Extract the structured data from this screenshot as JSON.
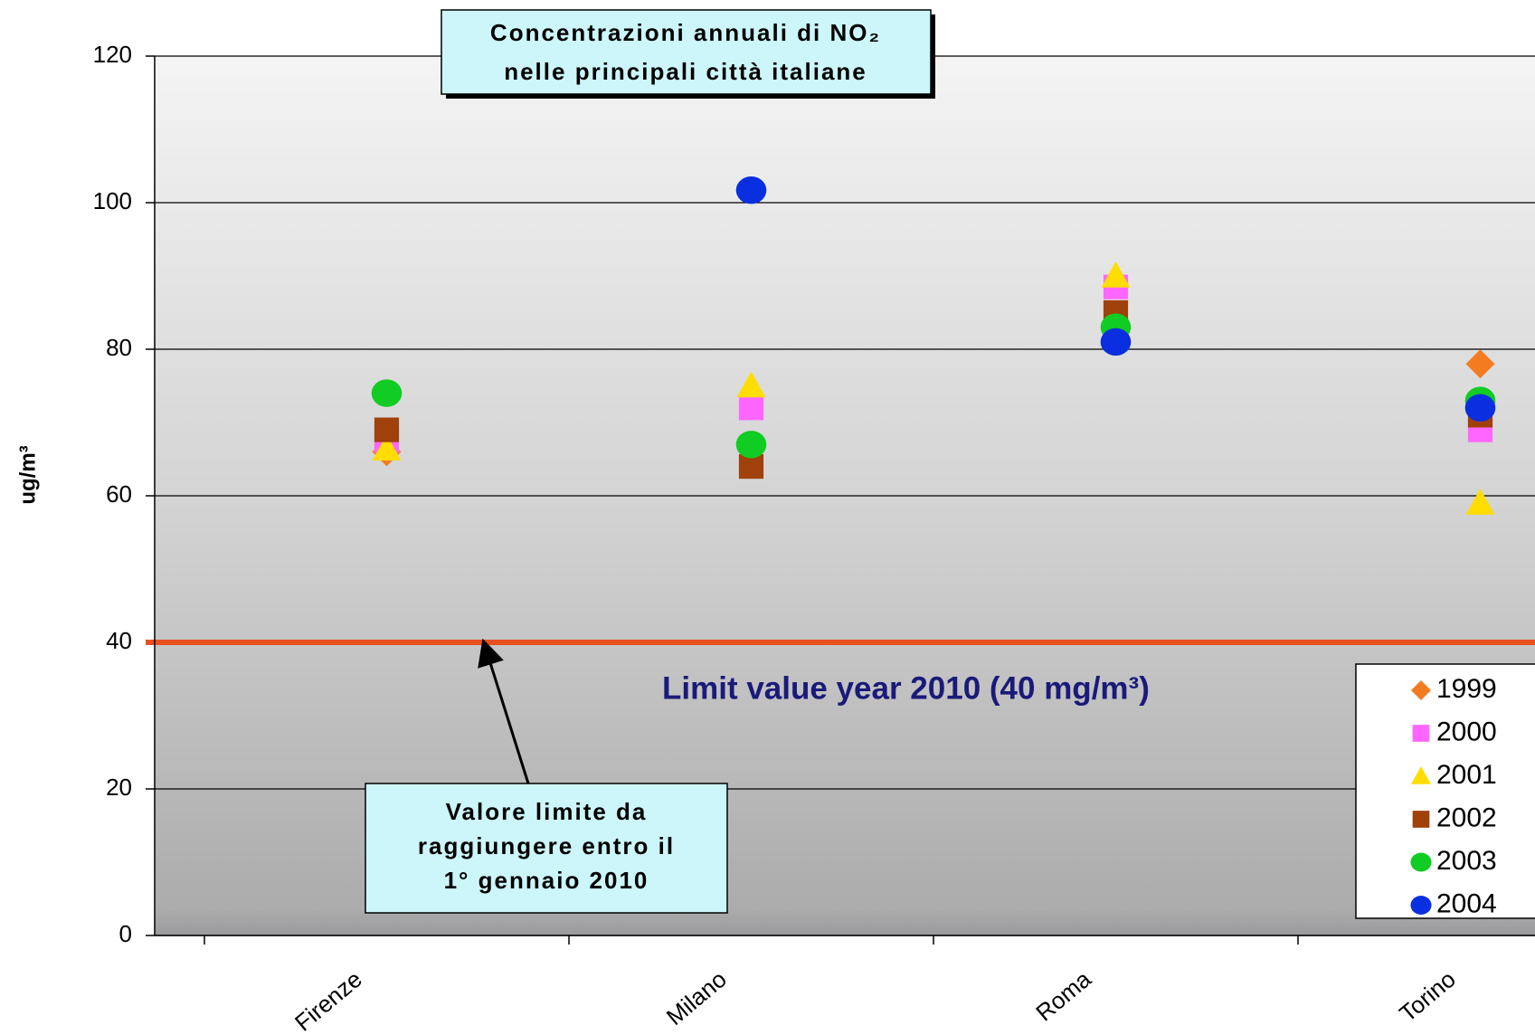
{
  "chart_data": {
    "type": "scatter",
    "title": [
      "Concentrazioni annuali di NO₂",
      "nelle principali città italiane"
    ],
    "ylabel": "ug/m³",
    "categories": [
      "Firenze",
      "Milano",
      "Roma",
      "Torino"
    ],
    "series": [
      {
        "name": "1999",
        "color": "#f47c20",
        "marker": "diamond",
        "values": [
          66,
          null,
          null,
          78
        ]
      },
      {
        "name": "2000",
        "color": "#ff66ff",
        "marker": "square",
        "values": [
          67.5,
          72,
          88.5,
          69
        ]
      },
      {
        "name": "2001",
        "color": "#ffdd00",
        "marker": "triangle",
        "values": [
          66.4,
          75,
          90,
          59
        ]
      },
      {
        "name": "2002",
        "color": "#a0400a",
        "marker": "square",
        "values": [
          69,
          64,
          85,
          71
        ]
      },
      {
        "name": "2003",
        "color": "#11cc22",
        "marker": "circle",
        "values": [
          74,
          67,
          83,
          73
        ]
      },
      {
        "name": "2004",
        "color": "#0a2fe0",
        "marker": "circle",
        "values": [
          null,
          101.7,
          81,
          72
        ]
      }
    ],
    "ylim": [
      0,
      120
    ],
    "yticks": [
      0,
      20,
      40,
      60,
      80,
      100,
      120
    ],
    "grid": true,
    "reference_line": {
      "value": 40,
      "color": "#e8501f"
    },
    "annotations": [
      "Limit value year 2010 (40 mg/m³)",
      [
        "Valore limite da",
        "raggiungere entro il",
        "1° gennaio 2010"
      ]
    ],
    "legend": "lower right"
  }
}
